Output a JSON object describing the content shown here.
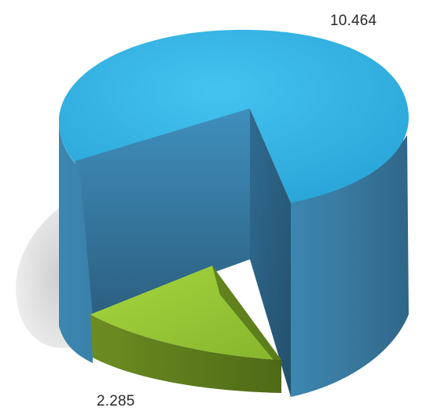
{
  "chart_data": {
    "type": "pie",
    "style": "3d-exploded",
    "labels": [
      "10.464",
      "2.285"
    ],
    "values": [
      10.464,
      2.285
    ],
    "colors": {
      "large_top": "#34b6e6",
      "large_side": "#3a7ea6",
      "small_top": "#9ac93a",
      "small_side": "#5c7a1e",
      "shadow": "#d9d9d9"
    },
    "legend": "none",
    "grid": false
  }
}
